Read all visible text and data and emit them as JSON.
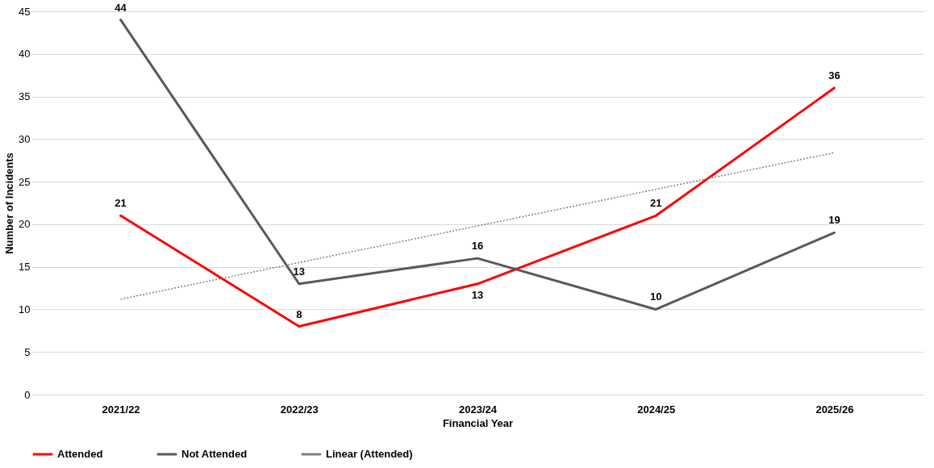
{
  "chart_data": {
    "type": "line",
    "xlabel": "Financial Year",
    "ylabel": "Number of Incidents",
    "categories": [
      "2021/22",
      "2022/23",
      "2023/24",
      "2024/25",
      "2025/26"
    ],
    "series": [
      {
        "name": "Attended",
        "color": "#ff0000",
        "values": [
          21,
          8,
          13,
          21,
          36
        ],
        "value_labels": [
          "21",
          "8",
          "13",
          "21",
          "36"
        ],
        "line_style": "solid"
      },
      {
        "name": "Not Attended",
        "color": "#595959",
        "values": [
          44,
          13,
          16,
          10,
          19
        ],
        "value_labels": [
          "44",
          "13",
          "16",
          "10",
          "19"
        ],
        "line_style": "solid"
      },
      {
        "name": "Linear (Attended)",
        "color": "#808080",
        "values": [
          11.2,
          15.5,
          19.8,
          24.1,
          28.4
        ],
        "line_style": "dotted"
      }
    ],
    "ylim": [
      0,
      45
    ],
    "yticks": [
      0,
      5,
      10,
      15,
      20,
      25,
      30,
      35,
      40,
      45
    ],
    "grid": "y",
    "legend": "bottom"
  }
}
